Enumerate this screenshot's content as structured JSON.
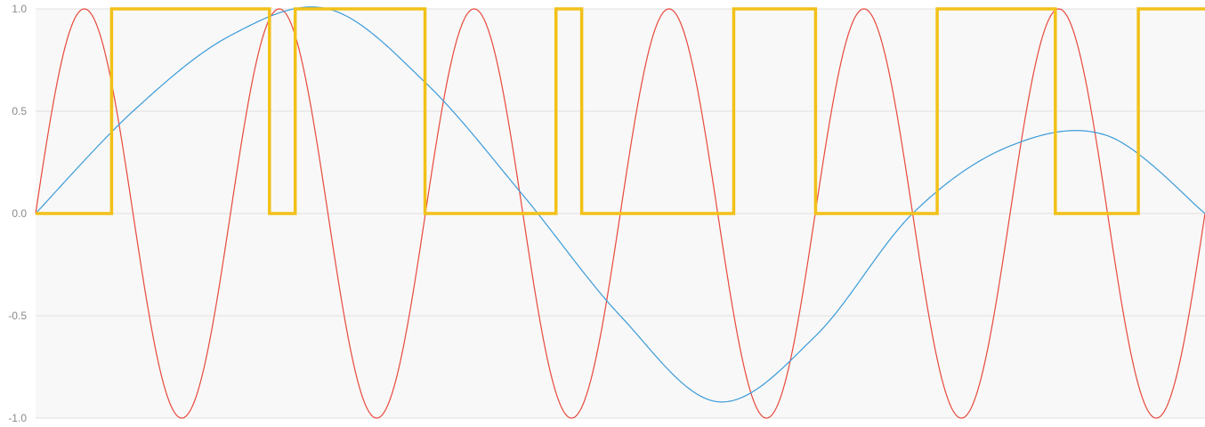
{
  "chart_data": {
    "type": "line",
    "title": "",
    "xlabel": "",
    "ylabel": "",
    "ylim": [
      -1.0,
      1.0
    ],
    "xlim": [
      0,
      1
    ],
    "yticks": [
      "1.0",
      "0.5",
      "0.0",
      "-0.5",
      "-1.0"
    ],
    "ytick_values": [
      1.0,
      0.5,
      0.0,
      -0.5,
      -1.0
    ],
    "grid": true,
    "legend": "none",
    "background_color": "#f8f8f8",
    "grid_color": "#e0e0e0",
    "series": [
      {
        "color": "#e8483b",
        "line": "thin",
        "description_points_x": [
          0.0,
          0.0417,
          0.125,
          0.2083,
          0.25,
          0.2917,
          0.375,
          0.4583,
          0.5,
          0.5417,
          0.625,
          0.7083,
          0.75,
          0.7917,
          0.875,
          0.9583,
          1.0
        ],
        "description_points_y": [
          0.0,
          1.0,
          -1.0,
          1.0,
          0.0,
          -1.0,
          1.0,
          -1.0,
          0.0,
          1.0,
          -1.0,
          1.0,
          0.0,
          -1.0,
          1.0,
          -1.0,
          0.0
        ],
        "formula": "sin(12*pi*x)"
      },
      {
        "color": "#3a9bd9",
        "line": "thin",
        "x": [
          0.0,
          0.0833,
          0.1667,
          0.25,
          0.3333,
          0.4167,
          0.5,
          0.5833,
          0.6667,
          0.75,
          0.8333,
          0.9167,
          1.0
        ],
        "y": [
          0.0,
          0.5,
          0.87,
          1.0,
          0.64,
          0.09,
          -0.5,
          -0.92,
          -0.6,
          0.0,
          0.33,
          0.38,
          0.0
        ]
      },
      {
        "color": "#f2c118",
        "line": "thick",
        "kind": "step",
        "x": [
          0.0,
          0.065,
          0.065,
          0.2,
          0.2,
          0.222,
          0.222,
          0.333,
          0.333,
          0.445,
          0.445,
          0.467,
          0.467,
          0.597,
          0.597,
          0.667,
          0.667,
          0.771,
          0.771,
          0.872,
          0.872,
          0.943,
          0.943,
          1.0
        ],
        "y": [
          0,
          0,
          1,
          1,
          0,
          0,
          1,
          1,
          0,
          0,
          1,
          1,
          0,
          0,
          1,
          1,
          0,
          0,
          1,
          1,
          0,
          0,
          1,
          1
        ]
      }
    ]
  }
}
